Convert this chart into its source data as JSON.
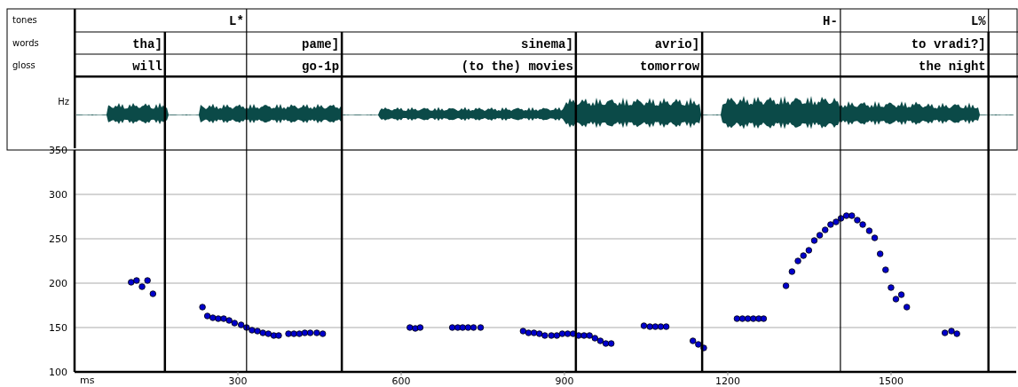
{
  "chart_data": {
    "type": "scatter",
    "xlabel": "ms",
    "ylabel": "Hz",
    "marker": "circle",
    "grid": "y",
    "xlim": [
      0,
      1730
    ],
    "xticks": [
      300,
      600,
      900,
      1200,
      1500
    ],
    "ylim": [
      100,
      350
    ],
    "yticks": [
      100,
      150,
      200,
      250,
      300,
      350
    ],
    "annotations": [
      "tones",
      "words",
      "gloss"
    ],
    "ref_lines": [
      {
        "axis": "x",
        "value": 316,
        "label": "L*"
      },
      {
        "axis": "x",
        "value": 1407,
        "label": "H-"
      },
      {
        "axis": "x",
        "value": 1679,
        "label": "L%"
      },
      {
        "axis": "x",
        "value": 166,
        "label": "tha]"
      },
      {
        "axis": "x",
        "value": 491,
        "label": "pame]"
      },
      {
        "axis": "x",
        "value": 921,
        "label": "sinema]"
      },
      {
        "axis": "x",
        "value": 1153,
        "label": "avrio]"
      },
      {
        "axis": "x",
        "value": 1679,
        "label": "to vradi?]"
      },
      {
        "axis": "x",
        "value": 166,
        "label": "will"
      },
      {
        "axis": "x",
        "value": 491,
        "label": "go-1p"
      },
      {
        "axis": "x",
        "value": 921,
        "label": "(to the) movies"
      },
      {
        "axis": "x",
        "value": 1153,
        "label": "tomorrow"
      },
      {
        "axis": "x",
        "value": 1679,
        "label": "the night"
      }
    ],
    "series": [
      {
        "color": "#0000cc",
        "x": [
          104,
          114,
          124,
          134,
          144,
          235,
          244,
          254,
          264,
          274,
          284,
          294,
          306,
          316,
          326,
          336,
          346,
          356,
          366,
          375,
          393,
          403,
          413,
          423,
          433,
          445,
          456,
          616,
          626,
          635,
          694,
          704,
          713,
          723,
          733,
          746,
          824,
          834,
          844,
          854,
          864,
          876,
          886,
          896,
          906,
          916,
          926,
          936,
          946,
          956,
          966,
          976,
          986,
          1046,
          1057,
          1067,
          1077,
          1087,
          1136,
          1146,
          1156,
          1217,
          1227,
          1237,
          1247,
          1257,
          1266,
          1307,
          1318,
          1329,
          1339,
          1349,
          1359,
          1369,
          1379,
          1389,
          1399,
          1408,
          1418,
          1428,
          1438,
          1448,
          1460,
          1470,
          1480,
          1490,
          1500,
          1509,
          1519,
          1529,
          1599,
          1611,
          1621
        ],
        "values": [
          201,
          203,
          196,
          203,
          188,
          173,
          163,
          161,
          160,
          160,
          158,
          155,
          153,
          150,
          147,
          146,
          144,
          143,
          141,
          141,
          143,
          143,
          143,
          144,
          144,
          144,
          143,
          150,
          149,
          150,
          150,
          150,
          150,
          150,
          150,
          150,
          146,
          144,
          144,
          143,
          141,
          141,
          141,
          143,
          143,
          143,
          141,
          141,
          141,
          138,
          135,
          132,
          132,
          152,
          151,
          151,
          151,
          151,
          135,
          131,
          127,
          160,
          160,
          160,
          160,
          160,
          160,
          197,
          213,
          225,
          231,
          237,
          248,
          254,
          260,
          266,
          269,
          273,
          276,
          276,
          271,
          266,
          259,
          251,
          233,
          215,
          195,
          182,
          187,
          173,
          144,
          146,
          143
        ]
      }
    ]
  }
}
